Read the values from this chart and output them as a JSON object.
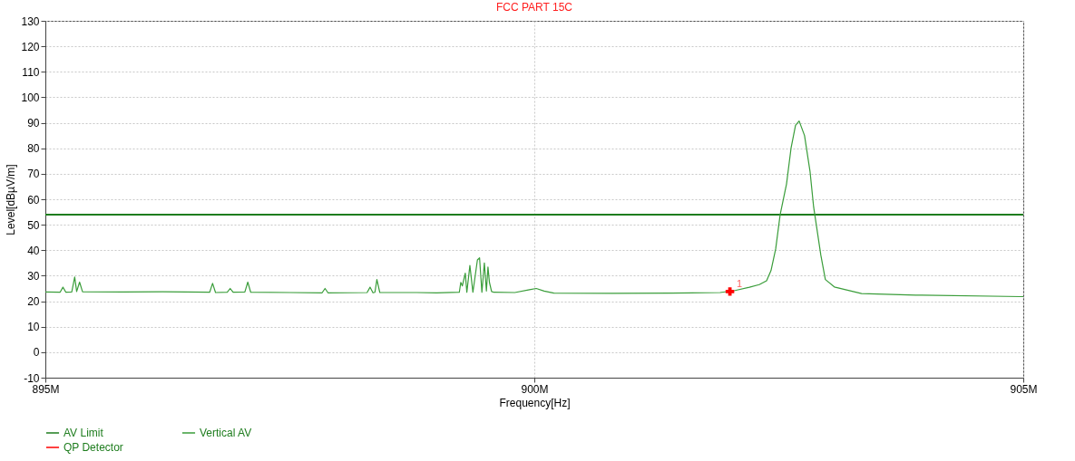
{
  "chart_data": {
    "type": "line",
    "title": "FCC PART 15C",
    "xlabel": "Frequency[Hz]",
    "ylabel": "Level[dBµV/m]",
    "xlim": [
      895,
      905
    ],
    "xticks": [
      {
        "value": 895,
        "label": "895M"
      },
      {
        "value": 900,
        "label": "900M"
      },
      {
        "value": 905,
        "label": "905M"
      }
    ],
    "ylim": [
      -10,
      130
    ],
    "yticks": [
      -10,
      0,
      10,
      20,
      30,
      40,
      50,
      60,
      70,
      80,
      90,
      100,
      110,
      120,
      130
    ],
    "grid": true,
    "legend": "bottom left",
    "series": [
      {
        "name": "AV Limit",
        "color": "#1e7d1e",
        "x": [
          895,
          905
        ],
        "values": [
          54,
          54
        ]
      },
      {
        "name": "Vertical AV",
        "color": "#3a9d3a",
        "x": [
          895.0,
          895.15,
          895.18,
          895.21,
          895.27,
          895.3,
          895.32,
          895.35,
          895.38,
          895.8,
          896.2,
          896.68,
          896.71,
          896.74,
          896.86,
          896.89,
          896.92,
          897.04,
          897.07,
          897.1,
          897.5,
          897.83,
          897.86,
          897.89,
          898.29,
          898.32,
          898.35,
          898.37,
          898.39,
          898.42,
          898.8,
          899.0,
          899.233,
          899.248,
          899.264,
          899.294,
          899.31,
          899.341,
          899.372,
          899.418,
          899.44,
          899.464,
          899.489,
          899.51,
          899.526,
          899.541,
          899.563,
          899.587,
          899.8,
          899.95,
          900.02,
          900.1,
          900.2,
          900.8,
          901.4,
          901.9,
          902.052,
          902.2,
          902.3,
          902.375,
          902.42,
          902.468,
          902.514,
          902.579,
          902.625,
          902.671,
          902.708,
          902.763,
          902.819,
          902.856,
          902.893,
          902.93,
          902.976,
          903.068,
          903.346,
          903.9,
          904.98,
          905.0
        ],
        "values": [
          23.6,
          23.5,
          25.5,
          23.5,
          23.6,
          29.5,
          23.8,
          27.5,
          23.7,
          23.6,
          23.7,
          23.5,
          27,
          23.4,
          23.5,
          25,
          23.5,
          23.6,
          27.5,
          23.5,
          23.4,
          23.3,
          25,
          23.3,
          23.4,
          25.5,
          23.3,
          23.5,
          28.5,
          23.4,
          23.4,
          23.3,
          23.5,
          27.4,
          26,
          31,
          23.5,
          34,
          23.5,
          36.2,
          37,
          23.5,
          35,
          24,
          33.4,
          27.4,
          23.8,
          23.5,
          23.4,
          24.5,
          25,
          24,
          23.2,
          23.1,
          23.2,
          23.4,
          24.2,
          25.5,
          26.5,
          28,
          32,
          40.5,
          54,
          66,
          80,
          89,
          90.7,
          85,
          71,
          57,
          47.5,
          38,
          28.5,
          25.6,
          23,
          22.4,
          21.8,
          21.8
        ]
      },
      {
        "name": "QP Detector",
        "type": "scatter",
        "marker": "cross",
        "color": "#ff0000",
        "x": [
          902.0
        ],
        "values": [
          23.8
        ]
      }
    ],
    "annotations": [
      {
        "text": "1",
        "x": 902.05,
        "y": 25.5
      }
    ]
  }
}
